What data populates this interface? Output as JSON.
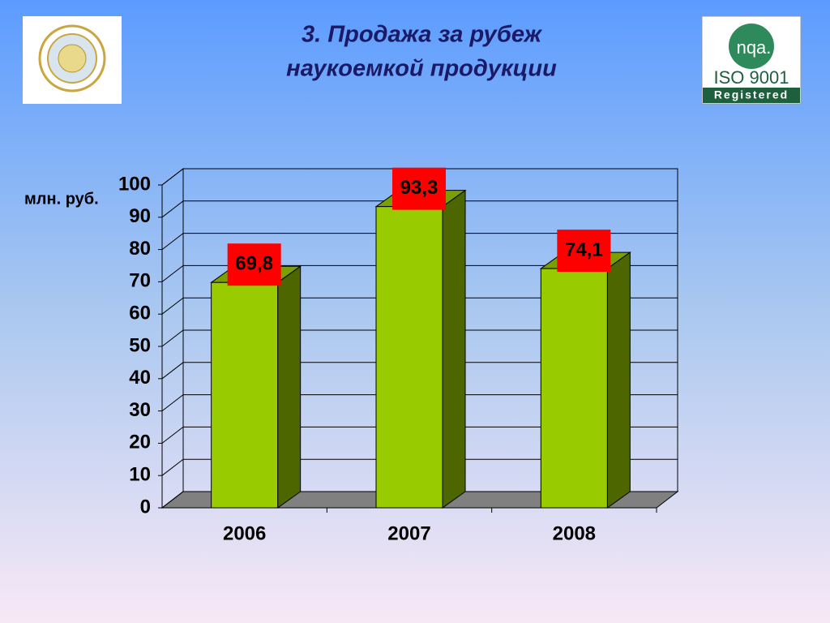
{
  "chart_data": {
    "type": "bar3d",
    "title": [
      "3. Продажа за рубеж",
      "наукоемкой продукции"
    ],
    "y_label": "млн. руб.",
    "categories": [
      "2006",
      "2007",
      "2008"
    ],
    "values": [
      69.8,
      93.3,
      74.1
    ],
    "value_labels": [
      "69,8",
      "93,3",
      "74,1"
    ],
    "color": "#99cc00",
    "ylim": [
      0,
      100
    ],
    "yticks": [
      0,
      10,
      20,
      30,
      40,
      50,
      60,
      70,
      80,
      90,
      100
    ],
    "grid": true
  },
  "badge": {
    "mark": "nqa.",
    "standard": "ISO 9001",
    "status": "Registered"
  }
}
